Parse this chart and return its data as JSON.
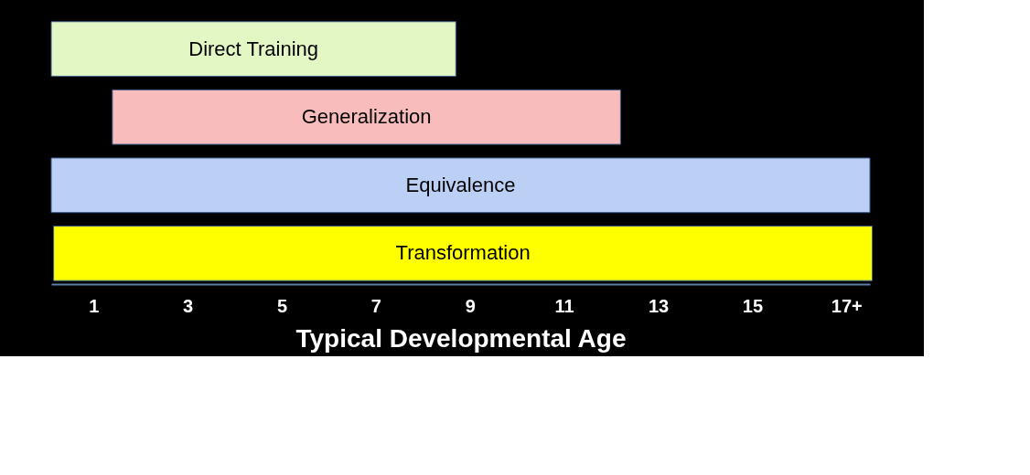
{
  "chart_data": {
    "type": "bar",
    "orientation": "horizontal",
    "xlabel": "Typical Developmental Age",
    "categories": [
      "Direct Training",
      "Generalization",
      "Equivalence",
      "Transformation"
    ],
    "base": [
      0.1,
      1.4,
      0.1,
      0.15
    ],
    "values": [
      8.6,
      10.8,
      17.4,
      17.4
    ],
    "colors": [
      "#e2f7c4",
      "#f9bcbc",
      "#bcd0f5",
      "#ffff00"
    ],
    "xlim": [
      0.1,
      17.5
    ],
    "xticks": [
      1,
      3,
      5,
      7,
      9,
      11,
      13,
      15,
      {
        "value": 17,
        "label": "17+"
      }
    ],
    "tick_labels": "x",
    "grid": false
  }
}
